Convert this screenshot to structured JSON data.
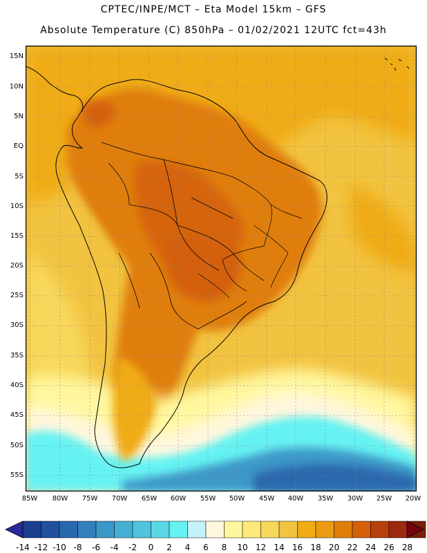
{
  "header": {
    "line1": "CPTEC/INPE/MCT –  Eta Model 15km – GFS",
    "line2": "Absolute Temperature (C) 850hPa – 01/02/2021 12UTC fct=43h"
  },
  "axes": {
    "lat_labels": [
      "15N",
      "10N",
      "5N",
      "EQ",
      "5S",
      "10S",
      "15S",
      "20S",
      "25S",
      "30S",
      "35S",
      "40S",
      "45S",
      "50S",
      "55S"
    ],
    "lon_labels": [
      "85W",
      "80W",
      "75W",
      "70W",
      "65W",
      "60W",
      "55W",
      "50W",
      "45W",
      "40W",
      "35W",
      "30W",
      "25W",
      "20W"
    ]
  },
  "colorbar": {
    "labels": [
      "-14",
      "-12",
      "-10",
      "-8",
      "-6",
      "-4",
      "-2",
      "0",
      "2",
      "4",
      "6",
      "8",
      "10",
      "12",
      "14",
      "16",
      "18",
      "20",
      "22",
      "24",
      "26",
      "28"
    ],
    "colors": [
      "#1a3f8f",
      "#21509e",
      "#2a68ad",
      "#3380bd",
      "#3c98c8",
      "#46b0d4",
      "#50c4de",
      "#5ad8e6",
      "#66f2f2",
      "#c4f2fa",
      "#fff7de",
      "#fff79e",
      "#fde87a",
      "#f8d85c",
      "#f2c340",
      "#f0ac14",
      "#ec9a12",
      "#e07e0a",
      "#d4600a",
      "#b8400c",
      "#9c2a0e",
      "#781e0a"
    ],
    "low_arrow_color": "#2a2a9a",
    "high_arrow_color": "#7a0010"
  },
  "map_colors": {
    "ocean_warm": "#f2c340",
    "ocean_hot": "#f0ac14",
    "land_hot": "#e07e0a",
    "land_very_hot": "#d4600a",
    "cold_band": "#66f2f2",
    "colder_band": "#3c98c8",
    "coldest": "#2a68ad"
  }
}
